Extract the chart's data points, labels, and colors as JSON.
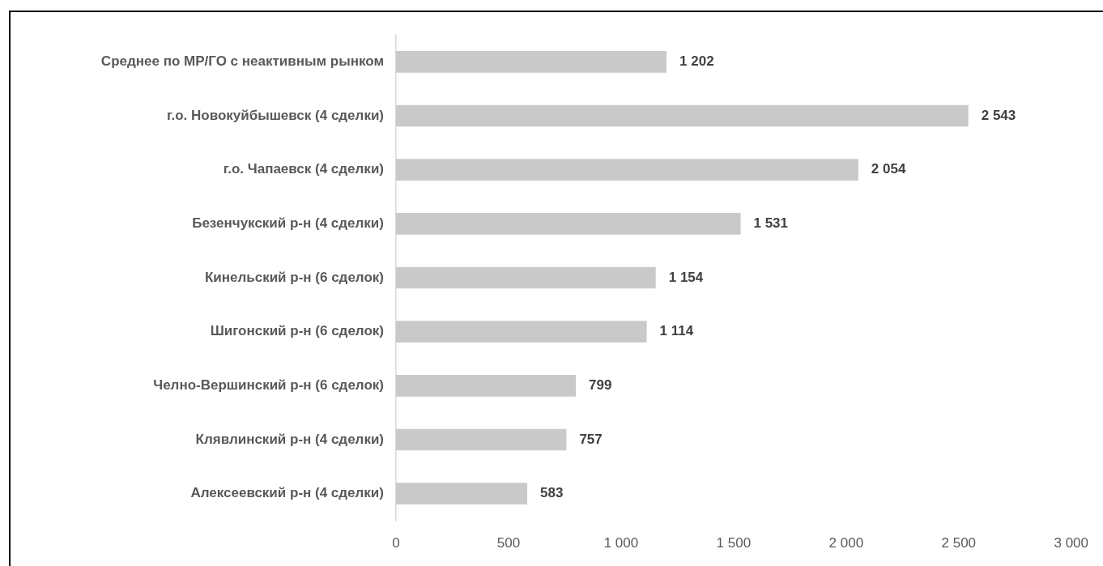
{
  "chart_data": {
    "type": "bar",
    "orientation": "horizontal",
    "categories": [
      "Среднее по МР/ГО с неактивным рынком",
      "г.о. Новокуйбышевск (4 сделки)",
      "г.о. Чапаевск (4 сделки)",
      "Безенчукский р-н (4 сделки)",
      "Кинельский р-н (6 сделок)",
      "Шигонский р-н (6 сделок)",
      "Челно-Вершинский р-н (6 сделок)",
      "Клявлинский р-н (4 сделки)",
      "Алексеевский р-н (4 сделки)"
    ],
    "values": [
      1202,
      2543,
      2054,
      1531,
      1154,
      1114,
      799,
      757,
      583
    ],
    "value_labels": [
      "1 202",
      "2 543",
      "2 054",
      "1 531",
      "1 154",
      "1 114",
      "799",
      "757",
      "583"
    ],
    "color": "#c9c9c9",
    "xlim": [
      0,
      3000
    ],
    "xticks": [
      0,
      500,
      {
        "value": 1000,
        "label": "1 000"
      },
      {
        "value": 1500,
        "label": "1 500"
      },
      {
        "value": 2000,
        "label": "2 000"
      },
      {
        "value": 2500,
        "label": "2 500"
      },
      {
        "value": 3000,
        "label": "3 000"
      }
    ]
  }
}
